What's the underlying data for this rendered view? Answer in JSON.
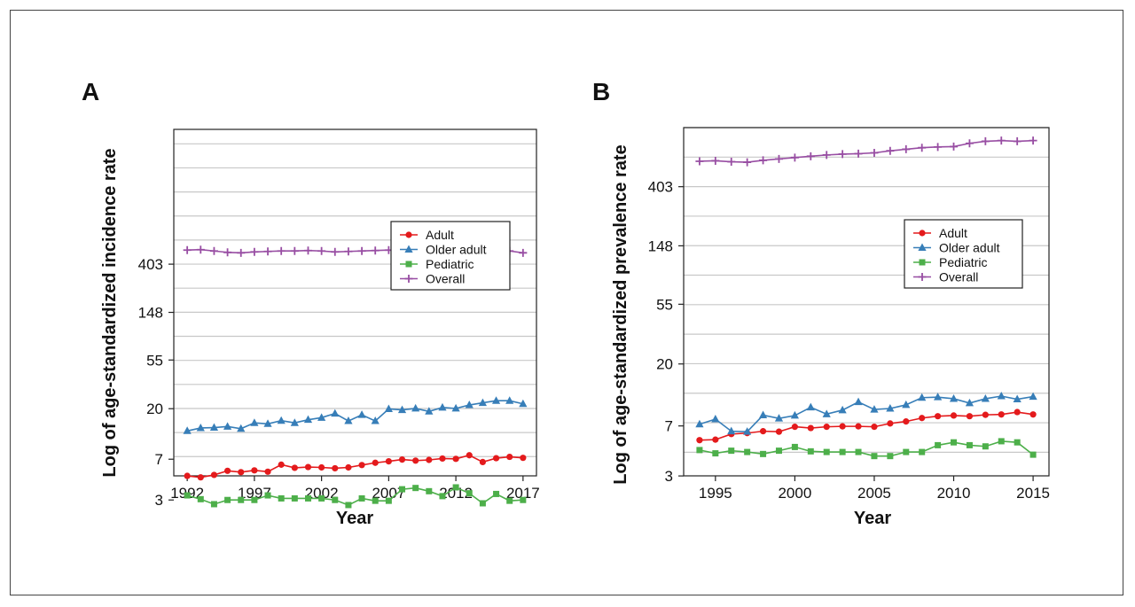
{
  "colors": {
    "adult": "#e41a1c",
    "older_adult": "#377eb8",
    "pediatric": "#4daf4a",
    "overall": "#984ea3",
    "grid": "#c8c8c8"
  },
  "chart_data": [
    {
      "panel_label": "A",
      "type": "line",
      "xlabel": "Year",
      "ylabel": "Log of age-standardized incidence rate",
      "y_scale": "log",
      "xlim": [
        1991,
        2018
      ],
      "ylim_log": [
        1.6,
        8.8
      ],
      "x_ticks": [
        1992,
        1997,
        2002,
        2007,
        2012,
        2017
      ],
      "y_ticks": [
        3,
        7,
        20,
        55,
        148,
        403
      ],
      "grid": true,
      "legend": "center-right",
      "x": [
        1992,
        1993,
        1994,
        1995,
        1996,
        1997,
        1998,
        1999,
        2000,
        2001,
        2002,
        2003,
        2004,
        2005,
        2006,
        2007,
        2008,
        2009,
        2010,
        2011,
        2012,
        2013,
        2014,
        2015,
        2016,
        2017
      ],
      "series": [
        {
          "name": "Adult",
          "key": "adult",
          "marker": "circle",
          "values": [
            4.95,
            4.8,
            5.05,
            5.5,
            5.35,
            5.55,
            5.4,
            6.25,
            5.85,
            5.95,
            5.9,
            5.8,
            5.9,
            6.2,
            6.5,
            6.7,
            6.95,
            6.8,
            6.9,
            7.1,
            7.05,
            7.6,
            6.6,
            7.15,
            7.35,
            7.2
          ]
        },
        {
          "name": "Older adult",
          "key": "older_adult",
          "marker": "triangle",
          "values": [
            12.6,
            13.4,
            13.5,
            13.8,
            13.2,
            14.9,
            14.6,
            15.6,
            14.9,
            15.9,
            16.6,
            18.1,
            15.5,
            17.6,
            15.5,
            19.9,
            19.5,
            20.1,
            18.9,
            20.5,
            20.1,
            21.6,
            22.6,
            23.6,
            23.6,
            22.1
          ]
        },
        {
          "name": "Pediatric",
          "key": "pediatric",
          "marker": "square",
          "values": [
            3.3,
            3.05,
            2.75,
            3.0,
            3.0,
            3.0,
            3.3,
            3.1,
            3.1,
            3.1,
            3.1,
            3.0,
            2.7,
            3.1,
            2.95,
            2.95,
            3.75,
            3.85,
            3.6,
            3.25,
            3.9,
            3.45,
            2.8,
            3.4,
            2.95,
            3.0
          ]
        },
        {
          "name": "Overall",
          "key": "overall",
          "marker": "plus",
          "values": [
            540,
            545,
            530,
            515,
            510,
            520,
            525,
            530,
            530,
            535,
            530,
            520,
            525,
            530,
            535,
            540,
            530,
            530,
            550,
            555,
            545,
            540,
            535,
            535,
            530,
            510
          ]
        }
      ]
    },
    {
      "panel_label": "B",
      "type": "line",
      "xlabel": "Year",
      "ylabel": "Log of age-standardized prevalence rate",
      "y_scale": "log",
      "xlim": [
        1993,
        2016
      ],
      "ylim_log": [
        1.1,
        7.0
      ],
      "x_ticks": [
        1995,
        2000,
        2005,
        2010,
        2015
      ],
      "y_ticks": [
        3,
        7,
        20,
        55,
        148,
        403
      ],
      "grid": true,
      "legend": "center-right",
      "x": [
        1994,
        1995,
        1996,
        1997,
        1998,
        1999,
        2000,
        2001,
        2002,
        2003,
        2004,
        2005,
        2006,
        2007,
        2008,
        2009,
        2010,
        2011,
        2012,
        2013,
        2014,
        2015
      ],
      "series": [
        {
          "name": "Adult",
          "key": "adult",
          "marker": "circle",
          "values": [
            5.5,
            5.55,
            6.1,
            6.2,
            6.4,
            6.35,
            6.9,
            6.75,
            6.9,
            6.95,
            6.95,
            6.9,
            7.3,
            7.55,
            8.0,
            8.25,
            8.35,
            8.25,
            8.45,
            8.5,
            8.85,
            8.5
          ]
        },
        {
          "name": "Older adult",
          "key": "older_adult",
          "marker": "triangle",
          "values": [
            7.2,
            7.85,
            6.4,
            6.35,
            8.4,
            7.95,
            8.35,
            9.6,
            8.55,
            9.15,
            10.5,
            9.25,
            9.4,
            10.0,
            11.3,
            11.4,
            11.1,
            10.3,
            11.1,
            11.6,
            11.0,
            11.5
          ]
        },
        {
          "name": "Pediatric",
          "key": "pediatric",
          "marker": "square",
          "values": [
            4.65,
            4.4,
            4.6,
            4.5,
            4.35,
            4.6,
            4.9,
            4.55,
            4.5,
            4.5,
            4.5,
            4.2,
            4.2,
            4.5,
            4.5,
            5.05,
            5.3,
            5.05,
            4.95,
            5.4,
            5.3,
            4.3
          ]
        },
        {
          "name": "Overall",
          "key": "overall",
          "marker": "plus",
          "values": [
            620,
            625,
            615,
            610,
            630,
            645,
            660,
            675,
            690,
            700,
            705,
            715,
            740,
            760,
            780,
            790,
            795,
            840,
            870,
            880,
            870,
            880
          ]
        }
      ]
    }
  ]
}
